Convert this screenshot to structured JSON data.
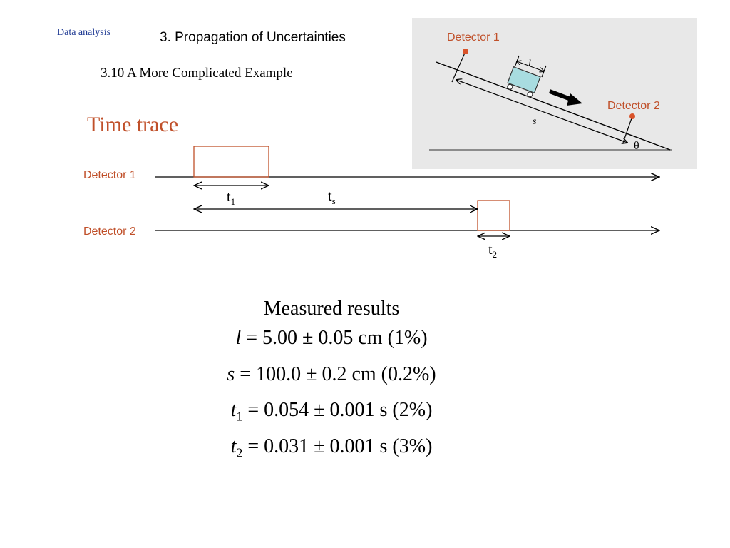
{
  "header": {
    "section_tag": "Data analysis",
    "chapter_title": "3. Propagation of Uncertainties",
    "subtitle": "3.10 A More Complicated Example"
  },
  "time_trace": {
    "title": "Time trace",
    "detector1_label": "Detector 1",
    "detector2_label": "Detector 2",
    "t1": {
      "symbol": "t",
      "sub": "1"
    },
    "ts": {
      "symbol": "t",
      "sub": "s"
    },
    "t2": {
      "symbol": "t",
      "sub": "2"
    }
  },
  "diagram": {
    "detector1_label": "Detector 1",
    "detector2_label": "Detector 2",
    "distance_symbol": "s",
    "length_symbol": "l",
    "angle_symbol": "θ",
    "colors": {
      "panel": "#e8e8e8",
      "cart": "#a8dce0",
      "detector_dot": "#d9532a",
      "label": "#c0502a"
    }
  },
  "results": {
    "heading": "Measured results",
    "lines": [
      {
        "var": "l",
        "sub": "",
        "value": " = 5.00 ± 0.05 cm (1%)"
      },
      {
        "var": "s",
        "sub": "",
        "value": " = 100.0 ± 0.2 cm (0.2%)"
      },
      {
        "var": "t",
        "sub": "1",
        "value": " = 0.054 ± 0.001 s (2%)"
      },
      {
        "var": "t",
        "sub": "2",
        "value": " = 0.031 ± 0.001 s (3%)"
      }
    ]
  }
}
